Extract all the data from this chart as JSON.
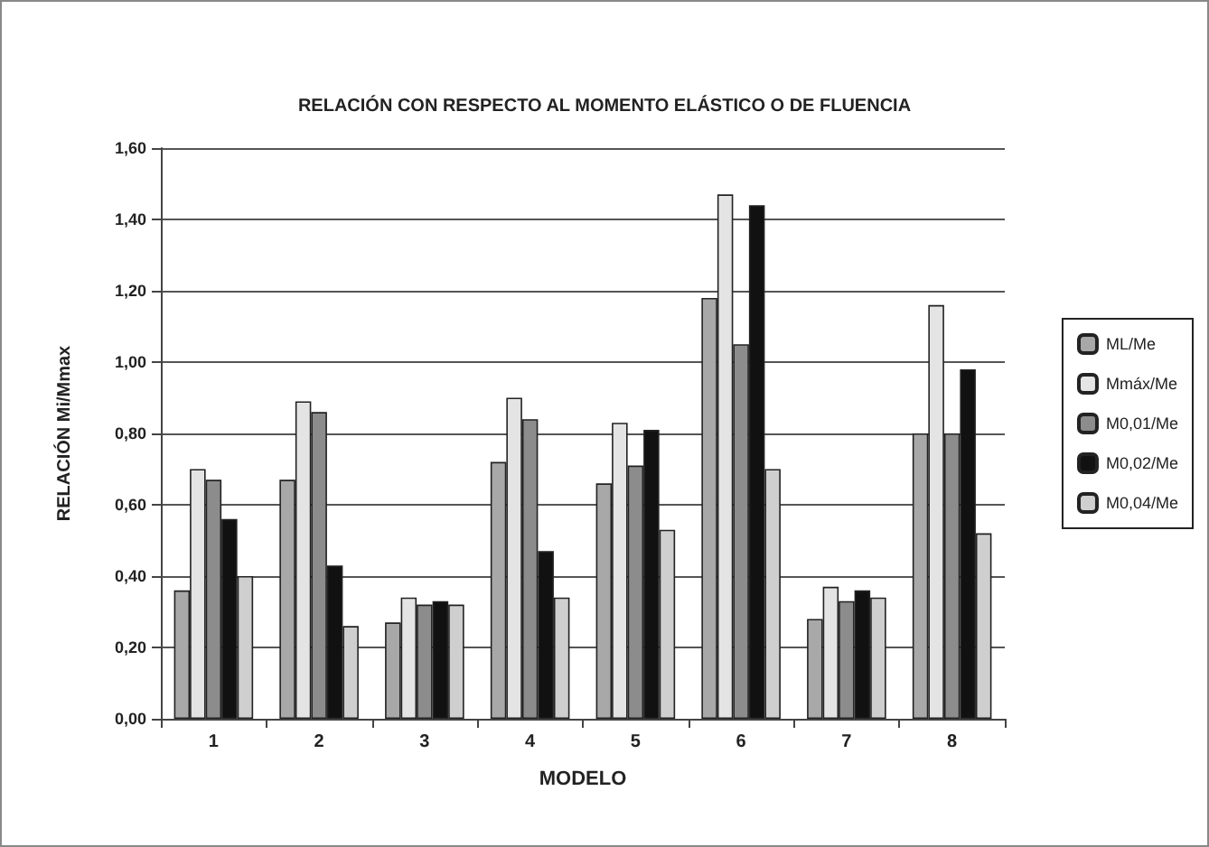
{
  "chart_data": {
    "type": "bar",
    "title": "RELACIÓN CON RESPECTO AL MOMENTO ELÁSTICO O DE FLUENCIA",
    "xlabel": "MODELO",
    "ylabel": "RELACIÓN Mi/Mmax",
    "categories": [
      "1",
      "2",
      "3",
      "4",
      "5",
      "6",
      "7",
      "8"
    ],
    "series": [
      {
        "name": "ML/Me",
        "color": "#a8a8a8",
        "values": [
          0.36,
          0.67,
          0.27,
          0.72,
          0.66,
          1.18,
          0.28,
          0.8
        ]
      },
      {
        "name": "Mmáx/Me",
        "color": "#e4e4e4",
        "values": [
          0.7,
          0.89,
          0.34,
          0.9,
          0.83,
          1.47,
          0.37,
          1.16
        ]
      },
      {
        "name": "M0,01/Me",
        "color": "#8c8c8c",
        "values": [
          0.67,
          0.86,
          0.32,
          0.84,
          0.71,
          1.05,
          0.33,
          0.8
        ]
      },
      {
        "name": "M0,02/Me",
        "color": "#111111",
        "values": [
          0.56,
          0.43,
          0.33,
          0.47,
          0.81,
          1.44,
          0.36,
          0.98
        ]
      },
      {
        "name": "M0,04/Me",
        "color": "#cfcfcf",
        "values": [
          0.4,
          0.26,
          0.32,
          0.34,
          0.53,
          0.7,
          0.34,
          0.52
        ]
      }
    ],
    "ylim": [
      0,
      1.6
    ],
    "yticks": [
      {
        "value": 0,
        "label": "0,00"
      },
      {
        "value": 0.2,
        "label": "0,20"
      },
      {
        "value": 0.4,
        "label": "0,40"
      },
      {
        "value": 0.6,
        "label": "0,60"
      },
      {
        "value": 0.8,
        "label": "0,80"
      },
      {
        "value": 1,
        "label": "1,00"
      },
      {
        "value": 1.2,
        "label": "1,20"
      },
      {
        "value": 1.4,
        "label": "1,40"
      },
      {
        "value": 1.6,
        "label": "1,60"
      }
    ],
    "grid": "y",
    "legend": "right"
  }
}
